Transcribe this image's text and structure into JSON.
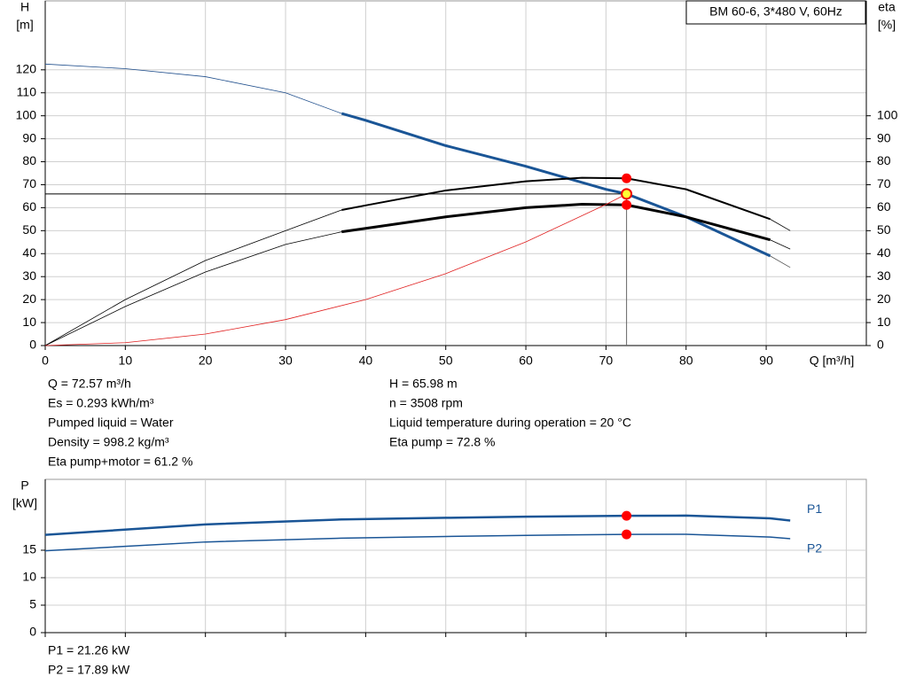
{
  "chart_data": [
    {
      "type": "line",
      "box_title": "BM 60-6, 3*480 V, 60Hz",
      "ylabel": [
        "H",
        "[m]"
      ],
      "y2label": [
        "eta",
        "[%]"
      ],
      "xlabel": "Q [m³/h]",
      "xlim": [
        0,
        102.5
      ],
      "xticks": [
        0,
        10,
        20,
        30,
        40,
        50,
        60,
        70,
        80,
        90
      ],
      "ylim": [
        0,
        150
      ],
      "yticks": [
        0,
        10,
        20,
        30,
        40,
        50,
        60,
        70,
        80,
        90,
        100,
        110,
        120
      ],
      "y2lim": [
        0,
        150
      ],
      "y2ticks": [
        0,
        10,
        20,
        30,
        40,
        50,
        60,
        70,
        80,
        90,
        100
      ],
      "grid": true,
      "series": [
        {
          "color": "#1f4e8c",
          "width": 0.8,
          "x": [
            0,
            10,
            20,
            30,
            37
          ],
          "values": [
            122.5,
            120.5,
            117,
            110,
            101
          ]
        },
        {
          "color": "#1a5596",
          "width": 3,
          "x": [
            37,
            40,
            50,
            60,
            70,
            72.57,
            80,
            90.5
          ],
          "values": [
            101,
            98,
            87,
            78,
            68,
            66,
            56,
            39
          ]
        },
        {
          "color": "#555555",
          "width": 0.8,
          "x": [
            90.5,
            93
          ],
          "values": [
            39,
            34
          ]
        },
        {
          "color": "#000000",
          "width": 0.8,
          "x": [
            0,
            10,
            20,
            30,
            37
          ],
          "values": [
            0,
            20,
            37,
            50,
            59
          ]
        },
        {
          "color": "#000000",
          "width": 2,
          "x": [
            37,
            40,
            50,
            60,
            67,
            72.57,
            80,
            90.5
          ],
          "values": [
            59,
            61,
            67.5,
            71.5,
            73,
            72.8,
            68,
            55
          ]
        },
        {
          "color": "#000000",
          "width": 0.8,
          "x": [
            90.5,
            93
          ],
          "values": [
            55,
            50
          ]
        },
        {
          "color": "#000000",
          "width": 0.8,
          "x": [
            0,
            10,
            20,
            30,
            37
          ],
          "values": [
            0,
            17,
            32,
            44,
            49.5
          ]
        },
        {
          "color": "#000000",
          "width": 3,
          "x": [
            37,
            40,
            50,
            60,
            67,
            72.57,
            80,
            90.5
          ],
          "values": [
            49.5,
            51,
            56,
            60,
            61.5,
            61.2,
            56,
            46
          ]
        },
        {
          "color": "#000000",
          "width": 0.8,
          "x": [
            90.5,
            93
          ],
          "values": [
            46,
            42
          ]
        },
        {
          "color": "#e02020",
          "width": 0.8,
          "x": [
            0,
            10,
            20,
            30,
            40,
            50,
            60,
            70,
            72.57
          ],
          "values": [
            0,
            1.25,
            5,
            11.3,
            20,
            31.3,
            45.1,
            61.4,
            66
          ]
        }
      ],
      "op_lines": {
        "x": 72.57,
        "y": 65.98
      },
      "points": [
        {
          "x": 72.57,
          "y": 72.8,
          "color": "#ff0000"
        },
        {
          "x": 72.57,
          "y": 61.2,
          "color": "#ff0000"
        },
        {
          "x": 72.57,
          "y": 65.98,
          "color": "#ffff33"
        }
      ],
      "info_left": [
        "Q = 72.57 m³/h",
        "Es = 0.293 kWh/m³",
        "Pumped liquid = Water",
        "Density = 998.2 kg/m³",
        "Eta pump+motor = 61.2 %"
      ],
      "info_right": [
        "H = 65.98 m",
        "n = 3508 rpm",
        "Liquid temperature during operation = 20 °C",
        "Eta pump = 72.8 %"
      ]
    },
    {
      "type": "line",
      "ylabel": [
        "P",
        "[kW]"
      ],
      "xlim": [
        0,
        102.5
      ],
      "xticks": [
        0,
        10,
        20,
        30,
        40,
        50,
        60,
        70,
        80,
        90,
        100
      ],
      "show_xtick_labels": false,
      "ylim": [
        0,
        27.9
      ],
      "yticks": [
        0,
        5,
        10,
        15
      ],
      "grid": true,
      "series": [
        {
          "name": "P1",
          "color": "#1a5596",
          "width": 2.5,
          "x": [
            0,
            20,
            37,
            50,
            60,
            72.57,
            80,
            90.5,
            93
          ],
          "values": [
            17.8,
            19.7,
            20.6,
            20.9,
            21.1,
            21.26,
            21.3,
            20.8,
            20.4
          ]
        },
        {
          "name": "P2",
          "color": "#1a5596",
          "width": 1.5,
          "x": [
            0,
            20,
            37,
            50,
            60,
            72.57,
            80,
            90.5,
            93
          ],
          "values": [
            14.9,
            16.5,
            17.2,
            17.5,
            17.7,
            17.89,
            17.9,
            17.4,
            17.1
          ]
        }
      ],
      "points": [
        {
          "x": 72.57,
          "y": 21.26,
          "color": "#ff0000"
        },
        {
          "x": 72.57,
          "y": 17.89,
          "color": "#ff0000"
        }
      ],
      "info": [
        "P1 = 21.26 kW",
        "P2 = 17.89 kW"
      ]
    }
  ]
}
